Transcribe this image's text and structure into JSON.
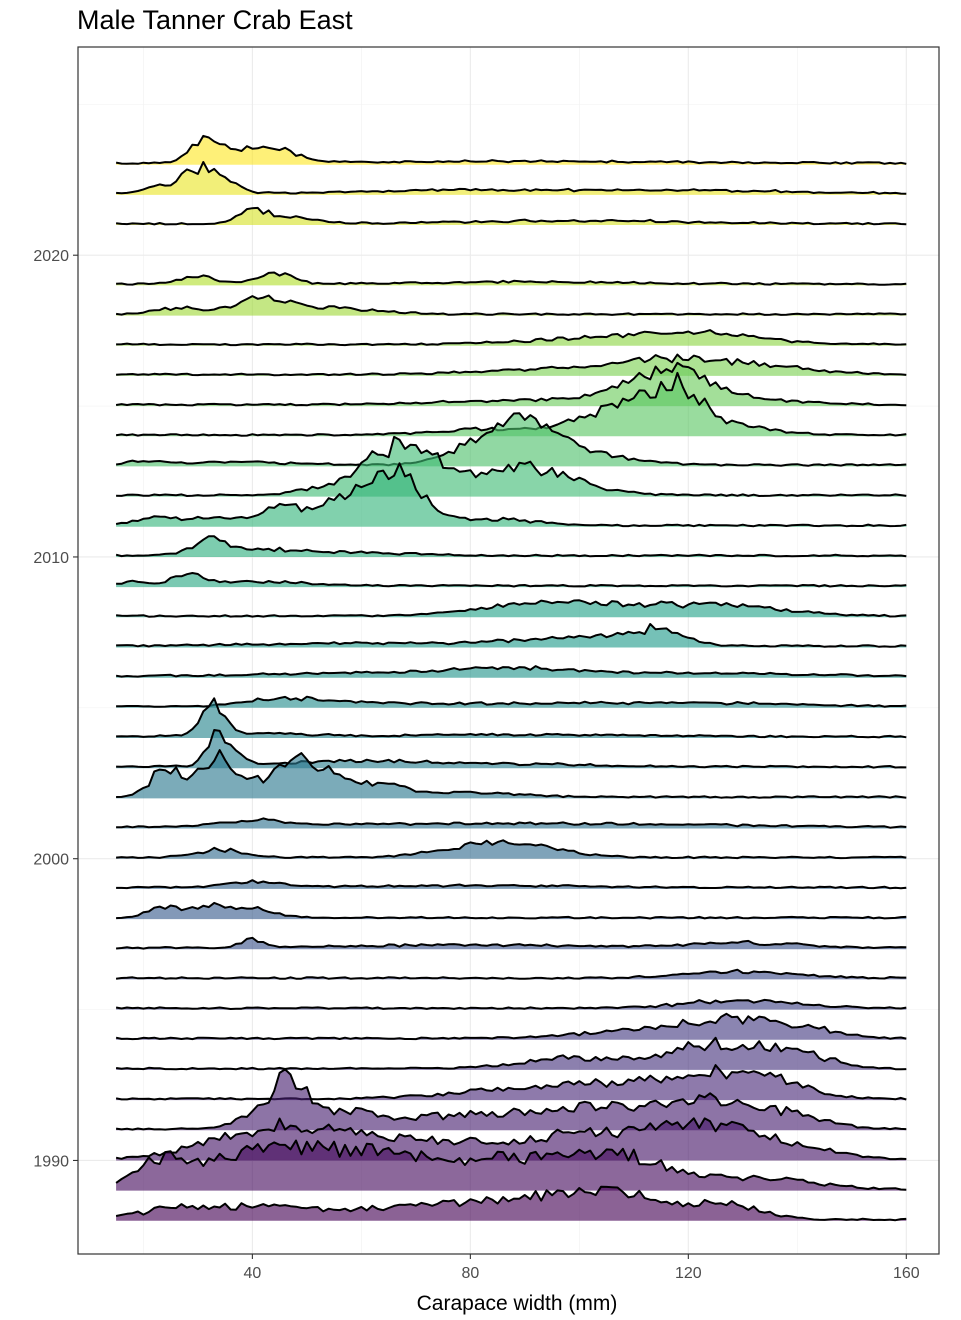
{
  "chart_data": {
    "type": "ridgeline",
    "title": "Male Tanner Crab East",
    "xlabel": "Carapace width (mm)",
    "ylabel": "",
    "x_ticks": [
      40,
      80,
      120,
      160
    ],
    "y_ticks": [
      1990,
      2000,
      2010,
      2020
    ],
    "xlim": [
      8,
      166
    ],
    "ylim": [
      1986.9,
      2026.9
    ],
    "panel_border": true,
    "grid": true,
    "colormap": "viridis",
    "fill_opacity": 0.62,
    "colors": {
      "panel_border": "#333333",
      "line": "#000000",
      "background": "#ffffff"
    },
    "series": [
      {
        "year": 1988,
        "min": 15,
        "max": 160,
        "peaks": [
          [
            30,
            10,
            12
          ],
          [
            47,
            8,
            8
          ],
          [
            67,
            10,
            8
          ],
          [
            90,
            15,
            16
          ],
          [
            107,
            10,
            20
          ],
          [
            128,
            6,
            12
          ]
        ]
      },
      {
        "year": 1989,
        "min": 15,
        "max": 160,
        "peaks": [
          [
            24,
            5,
            30
          ],
          [
            36,
            6,
            22
          ],
          [
            47,
            7,
            30
          ],
          [
            58,
            8,
            24
          ],
          [
            72,
            10,
            20
          ],
          [
            92,
            12,
            25
          ],
          [
            108,
            8,
            24
          ],
          [
            132,
            10,
            12
          ]
        ]
      },
      {
        "year": 1990,
        "min": 15,
        "max": 160,
        "peaks": [
          [
            40,
            10,
            22
          ],
          [
            55,
            10,
            20
          ],
          [
            80,
            14,
            16
          ],
          [
            105,
            10,
            22
          ],
          [
            122,
            8,
            30
          ],
          [
            138,
            8,
            14
          ]
        ]
      },
      {
        "year": 1991,
        "min": 15,
        "max": 160,
        "peaks": [
          [
            46,
            1.5,
            40
          ],
          [
            50,
            2.5,
            25
          ],
          [
            42,
            4,
            20
          ],
          [
            58,
            5,
            15
          ],
          [
            80,
            12,
            14
          ],
          [
            105,
            10,
            20
          ],
          [
            125,
            8,
            26
          ],
          [
            140,
            6,
            12
          ]
        ]
      },
      {
        "year": 1992,
        "min": 15,
        "max": 160,
        "peaks": [
          [
            82,
            10,
            6
          ],
          [
            102,
            10,
            14
          ],
          [
            122,
            8,
            22
          ],
          [
            135,
            7,
            16
          ]
        ]
      },
      {
        "year": 1993,
        "min": 15,
        "max": 160,
        "peaks": [
          [
            100,
            10,
            10
          ],
          [
            125,
            8,
            24
          ],
          [
            140,
            6,
            14
          ]
        ]
      },
      {
        "year": 1994,
        "min": 15,
        "max": 160,
        "peaks": [
          [
            110,
            10,
            8
          ],
          [
            128,
            8,
            18
          ],
          [
            142,
            6,
            8
          ]
        ]
      },
      {
        "year": 1995,
        "min": 15,
        "max": 160,
        "peaks": [
          [
            130,
            10,
            8
          ]
        ]
      },
      {
        "year": 1996,
        "min": 15,
        "max": 160,
        "peaks": [
          [
            130,
            10,
            6
          ]
        ]
      },
      {
        "year": 1997,
        "min": 15,
        "max": 160,
        "peaks": [
          [
            40,
            2,
            8
          ],
          [
            80,
            20,
            3
          ],
          [
            130,
            10,
            5
          ]
        ]
      },
      {
        "year": 1998,
        "min": 15,
        "max": 160,
        "peaks": [
          [
            24,
            3,
            10
          ],
          [
            32,
            3,
            12
          ],
          [
            40,
            4,
            8
          ]
        ]
      },
      {
        "year": 1999,
        "min": 15,
        "max": 160,
        "peaks": [
          [
            40,
            5,
            6
          ],
          [
            80,
            20,
            2
          ]
        ]
      },
      {
        "year": 2000,
        "min": 15,
        "max": 160,
        "peaks": [
          [
            34,
            4,
            8
          ],
          [
            82,
            8,
            10
          ],
          [
            90,
            8,
            8
          ]
        ]
      },
      {
        "year": 2001,
        "min": 15,
        "max": 160,
        "peaks": [
          [
            40,
            6,
            6
          ],
          [
            70,
            20,
            3
          ],
          [
            110,
            20,
            3
          ]
        ]
      },
      {
        "year": 2002,
        "min": 15,
        "max": 160,
        "peaks": [
          [
            24,
            2.5,
            30
          ],
          [
            33,
            3,
            40
          ],
          [
            45,
            5,
            22
          ],
          [
            48,
            2,
            16
          ],
          [
            53,
            3.5,
            20
          ],
          [
            62,
            5,
            12
          ],
          [
            78,
            10,
            4
          ]
        ]
      },
      {
        "year": 2003,
        "min": 15,
        "max": 160,
        "peaks": [
          [
            33,
            1.5,
            28
          ],
          [
            36,
            2,
            14
          ],
          [
            55,
            15,
            4
          ],
          [
            80,
            20,
            3
          ]
        ]
      },
      {
        "year": 2004,
        "min": 15,
        "max": 160,
        "peaks": [
          [
            33,
            2,
            32
          ],
          [
            40,
            10,
            3
          ],
          [
            90,
            20,
            2
          ]
        ]
      },
      {
        "year": 2005,
        "min": 15,
        "max": 160,
        "peaks": [
          [
            45,
            6,
            6
          ],
          [
            55,
            10,
            4
          ],
          [
            90,
            20,
            3
          ],
          [
            125,
            15,
            3
          ]
        ]
      },
      {
        "year": 2006,
        "min": 15,
        "max": 160,
        "peaks": [
          [
            60,
            20,
            3
          ],
          [
            88,
            12,
            6
          ],
          [
            120,
            20,
            3
          ]
        ]
      },
      {
        "year": 2007,
        "min": 15,
        "max": 160,
        "peaks": [
          [
            60,
            20,
            3
          ],
          [
            95,
            10,
            6
          ],
          [
            110,
            8,
            8
          ],
          [
            115,
            4,
            10
          ]
        ]
      },
      {
        "year": 2008,
        "min": 15,
        "max": 160,
        "peaks": [
          [
            90,
            10,
            8
          ],
          [
            110,
            15,
            10
          ],
          [
            130,
            10,
            6
          ]
        ]
      },
      {
        "year": 2009,
        "min": 15,
        "max": 160,
        "peaks": [
          [
            18,
            2,
            4
          ],
          [
            28,
            3,
            8
          ],
          [
            40,
            10,
            4
          ]
        ]
      },
      {
        "year": 2010,
        "min": 15,
        "max": 160,
        "peaks": [
          [
            32,
            3,
            12
          ],
          [
            40,
            8,
            6
          ],
          [
            60,
            10,
            3
          ]
        ]
      },
      {
        "year": 2011,
        "min": 15,
        "max": 160,
        "peaks": [
          [
            22,
            4,
            8
          ],
          [
            33,
            4,
            8
          ],
          [
            45,
            4,
            12
          ],
          [
            55,
            8,
            14
          ],
          [
            64,
            6,
            30
          ],
          [
            68,
            4,
            20
          ],
          [
            84,
            8,
            6
          ]
        ]
      },
      {
        "year": 2012,
        "min": 15,
        "max": 160,
        "peaks": [
          [
            60,
            8,
            12
          ],
          [
            65,
            5,
            30
          ],
          [
            72,
            4,
            24
          ],
          [
            85,
            8,
            18
          ],
          [
            95,
            8,
            14
          ]
        ]
      },
      {
        "year": 2013,
        "min": 15,
        "max": 160,
        "peaks": [
          [
            20,
            3,
            4
          ],
          [
            38,
            10,
            3
          ],
          [
            82,
            6,
            18
          ],
          [
            88,
            5,
            22
          ],
          [
            94,
            5,
            20
          ],
          [
            102,
            8,
            10
          ]
        ]
      },
      {
        "year": 2014,
        "min": 15,
        "max": 160,
        "peaks": [
          [
            85,
            10,
            6
          ],
          [
            104,
            6,
            14
          ],
          [
            112,
            6,
            22
          ],
          [
            118,
            4,
            28
          ],
          [
            125,
            8,
            12
          ]
        ]
      },
      {
        "year": 2015,
        "min": 15,
        "max": 160,
        "peaks": [
          [
            90,
            15,
            4
          ],
          [
            112,
            8,
            14
          ],
          [
            118,
            6,
            20
          ],
          [
            130,
            10,
            6
          ]
        ]
      },
      {
        "year": 2016,
        "min": 15,
        "max": 160,
        "peaks": [
          [
            100,
            15,
            6
          ],
          [
            118,
            10,
            12
          ],
          [
            135,
            10,
            6
          ]
        ]
      },
      {
        "year": 2017,
        "min": 15,
        "max": 160,
        "peaks": [
          [
            110,
            15,
            8
          ],
          [
            125,
            10,
            6
          ]
        ]
      },
      {
        "year": 2018,
        "min": 15,
        "max": 160,
        "peaks": [
          [
            26,
            4,
            6
          ],
          [
            42,
            5,
            14
          ],
          [
            55,
            8,
            6
          ]
        ]
      },
      {
        "year": 2019,
        "min": 15,
        "max": 160,
        "peaks": [
          [
            30,
            3,
            8
          ],
          [
            44,
            3,
            12
          ],
          [
            90,
            20,
            2
          ]
        ]
      },
      {
        "year": 2021,
        "min": 15,
        "max": 160,
        "peaks": [
          [
            40,
            2,
            12
          ],
          [
            45,
            5,
            8
          ],
          [
            100,
            20,
            3
          ]
        ]
      },
      {
        "year": 2022,
        "min": 15,
        "max": 160,
        "peaks": [
          [
            22,
            2,
            8
          ],
          [
            27,
            1.5,
            10
          ],
          [
            31,
            2.5,
            26
          ],
          [
            36,
            2,
            10
          ],
          [
            80,
            20,
            3
          ],
          [
            120,
            20,
            3
          ]
        ]
      },
      {
        "year": 2023,
        "min": 15,
        "max": 160,
        "peaks": [
          [
            30,
            2,
            14
          ],
          [
            33,
            1.5,
            12
          ],
          [
            38,
            5,
            14
          ],
          [
            45,
            4,
            8
          ],
          [
            90,
            30,
            2
          ]
        ]
      }
    ]
  }
}
